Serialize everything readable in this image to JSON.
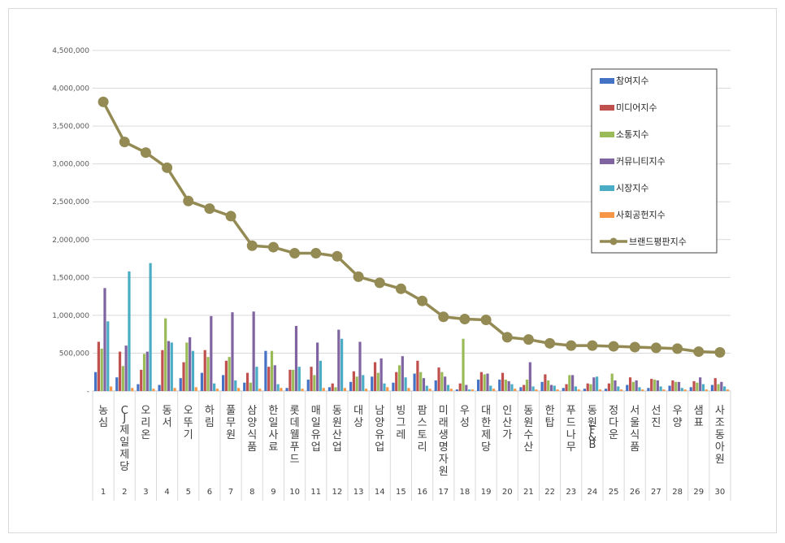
{
  "chart_data": {
    "type": "bar",
    "ylim": [
      0,
      4500000
    ],
    "y_ticks": [
      "4,500,000",
      "4,000,000",
      "3,500,000",
      "3,000,000",
      "2,500,000",
      "2,000,000",
      "1,500,000",
      "1,000,000",
      "500,000",
      "-"
    ],
    "y_tick_values": [
      4500000,
      4000000,
      3500000,
      3000000,
      2500000,
      2000000,
      1500000,
      1000000,
      500000,
      0
    ],
    "grid": true,
    "legend_position": "right",
    "categories": [
      "농심",
      "CJ제일제당",
      "오리온",
      "동서",
      "오뚜기",
      "하림",
      "풀무원",
      "삼양식품",
      "한일사료",
      "롯데웰푸드",
      "매일유업",
      "동원산업",
      "대상",
      "남양유업",
      "빙그레",
      "팜스토리",
      "미래생명자원",
      "우성",
      "대한제당",
      "인산가",
      "동원수산",
      "한탑",
      "푸드나무",
      "동원F&B",
      "정다운",
      "서울식품",
      "선진",
      "우양",
      "샘표",
      "사조동아원"
    ],
    "ranks": [
      "1",
      "2",
      "3",
      "4",
      "5",
      "6",
      "7",
      "8",
      "9",
      "10",
      "11",
      "12",
      "13",
      "14",
      "15",
      "16",
      "17",
      "18",
      "19",
      "20",
      "21",
      "22",
      "23",
      "24",
      "25",
      "26",
      "27",
      "28",
      "29",
      "30"
    ],
    "series": [
      {
        "name": "참여지수",
        "color": "#4472c4",
        "values": [
          250000,
          180000,
          90000,
          80000,
          170000,
          240000,
          210000,
          110000,
          530000,
          40000,
          150000,
          50000,
          120000,
          190000,
          110000,
          230000,
          140000,
          20000,
          150000,
          150000,
          50000,
          120000,
          40000,
          30000,
          30000,
          80000,
          40000,
          70000,
          50000,
          80000
        ]
      },
      {
        "name": "미디어지수",
        "color": "#c0504d",
        "values": [
          650000,
          520000,
          280000,
          540000,
          380000,
          540000,
          400000,
          240000,
          320000,
          280000,
          320000,
          100000,
          260000,
          380000,
          250000,
          400000,
          310000,
          100000,
          250000,
          240000,
          80000,
          220000,
          90000,
          100000,
          100000,
          180000,
          160000,
          140000,
          130000,
          170000
        ]
      },
      {
        "name": "소통지수",
        "color": "#9bbb59",
        "values": [
          560000,
          330000,
          490000,
          960000,
          640000,
          450000,
          450000,
          110000,
          530000,
          280000,
          210000,
          50000,
          190000,
          240000,
          340000,
          250000,
          250000,
          690000,
          220000,
          150000,
          150000,
          140000,
          210000,
          90000,
          230000,
          120000,
          150000,
          120000,
          110000,
          90000
        ]
      },
      {
        "name": "커뮤니티지수",
        "color": "#8064a2",
        "values": [
          1360000,
          600000,
          520000,
          660000,
          710000,
          990000,
          1040000,
          1050000,
          340000,
          860000,
          640000,
          810000,
          650000,
          430000,
          460000,
          170000,
          190000,
          80000,
          230000,
          130000,
          380000,
          80000,
          210000,
          180000,
          140000,
          140000,
          140000,
          120000,
          180000,
          120000
        ]
      },
      {
        "name": "시장지수",
        "color": "#4bacc6",
        "values": [
          920000,
          1580000,
          1690000,
          640000,
          530000,
          100000,
          140000,
          320000,
          90000,
          320000,
          400000,
          690000,
          210000,
          100000,
          180000,
          70000,
          80000,
          20000,
          70000,
          90000,
          60000,
          70000,
          60000,
          190000,
          60000,
          50000,
          60000,
          40000,
          90000,
          60000
        ]
      },
      {
        "name": "사회공헌지수",
        "color": "#f79646",
        "values": [
          60000,
          40000,
          30000,
          40000,
          50000,
          30000,
          40000,
          30000,
          40000,
          30000,
          40000,
          40000,
          30000,
          50000,
          40000,
          30000,
          30000,
          20000,
          30000,
          30000,
          20000,
          20000,
          20000,
          20000,
          20000,
          20000,
          20000,
          20000,
          20000,
          20000
        ]
      },
      {
        "name": "브랜드평판지수",
        "color": "#948a54",
        "type": "line",
        "values": [
          3820000,
          3290000,
          3150000,
          2950000,
          2510000,
          2410000,
          2310000,
          1920000,
          1900000,
          1820000,
          1820000,
          1780000,
          1510000,
          1430000,
          1350000,
          1190000,
          980000,
          950000,
          940000,
          710000,
          680000,
          630000,
          600000,
          600000,
          590000,
          580000,
          570000,
          560000,
          520000,
          510000
        ]
      }
    ]
  }
}
